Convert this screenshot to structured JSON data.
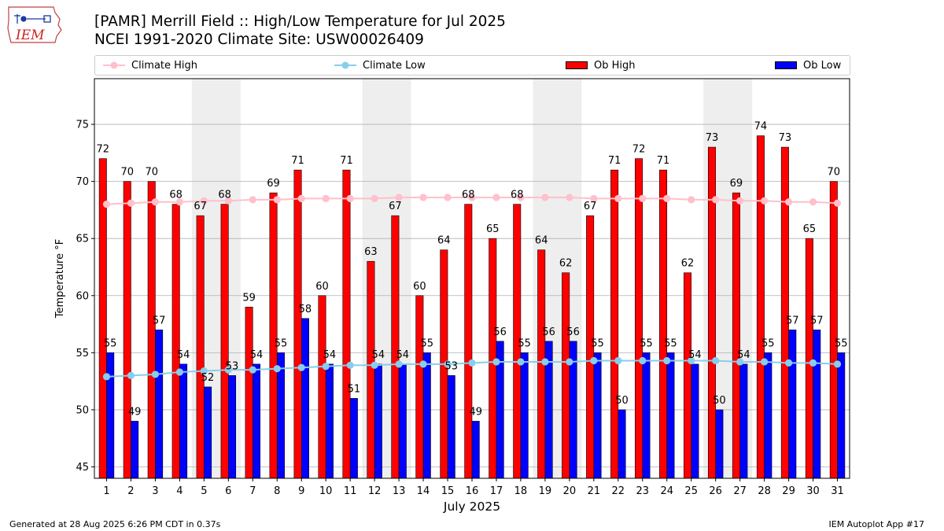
{
  "logo": {
    "text": "IEM"
  },
  "title_line1": "[PAMR] Merrill Field :: High/Low Temperature for Jul 2025",
  "title_line2": "NCEI 1991-2020 Climate Site: USW00026409",
  "footer_left": "Generated at 28 Aug 2025 6:26 PM CDT in 0.37s",
  "footer_right": "IEM Autoplot App #17",
  "colors": {
    "ob_high": "#ff0000",
    "ob_low": "#0000ff",
    "climate_high": "#ffc0cb",
    "climate_low": "#87ceeb",
    "weekend_shade": "#eeeeee"
  },
  "chart_data": {
    "type": "bar",
    "xlabel": "July 2025",
    "ylabel": "Temperature °F",
    "ylim": [
      44,
      79
    ],
    "yticks": [
      45,
      50,
      55,
      60,
      65,
      70,
      75
    ],
    "grid": true,
    "legend_position": "top",
    "categories": [
      "1",
      "2",
      "3",
      "4",
      "5",
      "6",
      "7",
      "8",
      "9",
      "10",
      "11",
      "12",
      "13",
      "14",
      "15",
      "16",
      "17",
      "18",
      "19",
      "20",
      "21",
      "22",
      "23",
      "24",
      "25",
      "26",
      "27",
      "28",
      "29",
      "30",
      "31"
    ],
    "shaded_days": [
      [
        5,
        6
      ],
      [
        12,
        13
      ],
      [
        19,
        20
      ],
      [
        26,
        27
      ]
    ],
    "series": [
      {
        "name": "Ob High",
        "kind": "bar",
        "values": [
          72,
          70,
          70,
          68,
          67,
          68,
          59,
          69,
          71,
          60,
          71,
          63,
          67,
          60,
          64,
          68,
          65,
          68,
          64,
          62,
          67,
          71,
          72,
          71,
          62,
          73,
          69,
          74,
          73,
          65,
          70
        ]
      },
      {
        "name": "Ob Low",
        "kind": "bar",
        "values": [
          55,
          49,
          57,
          54,
          52,
          53,
          54,
          55,
          58,
          54,
          51,
          54,
          54,
          55,
          53,
          49,
          56,
          55,
          56,
          56,
          55,
          50,
          55,
          55,
          54,
          50,
          54,
          55,
          57,
          57,
          55
        ]
      },
      {
        "name": "Climate High",
        "kind": "line",
        "values": [
          68.0,
          68.1,
          68.2,
          68.2,
          68.3,
          68.3,
          68.4,
          68.4,
          68.5,
          68.5,
          68.5,
          68.5,
          68.6,
          68.6,
          68.6,
          68.6,
          68.6,
          68.6,
          68.6,
          68.6,
          68.5,
          68.5,
          68.5,
          68.5,
          68.4,
          68.4,
          68.3,
          68.3,
          68.2,
          68.2,
          68.1
        ]
      },
      {
        "name": "Climate Low",
        "kind": "line",
        "values": [
          52.9,
          53.0,
          53.1,
          53.3,
          53.4,
          53.5,
          53.5,
          53.6,
          53.7,
          53.8,
          53.9,
          53.9,
          54.0,
          54.0,
          54.0,
          54.1,
          54.2,
          54.2,
          54.2,
          54.2,
          54.3,
          54.3,
          54.3,
          54.3,
          54.3,
          54.3,
          54.2,
          54.2,
          54.1,
          54.1,
          54.0
        ]
      }
    ]
  }
}
